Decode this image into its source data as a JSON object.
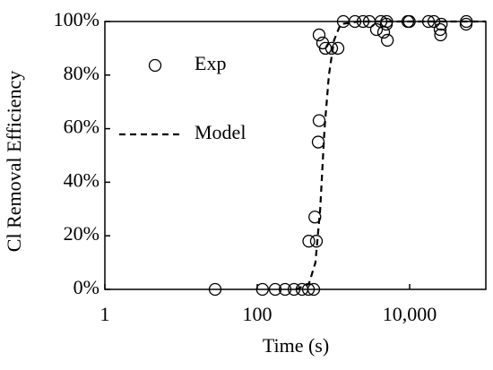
{
  "chart_data": {
    "type": "scatter",
    "x_label": "Time (s)",
    "y_label": "Cl Removal Efficiency",
    "xscale": "log",
    "xlim": [
      1,
      100000
    ],
    "xticks": [
      1,
      100,
      {
        "value": 10000,
        "label": "10,000"
      }
    ],
    "ylim": [
      0,
      100
    ],
    "yticks": [
      {
        "value": 0,
        "label": "0%"
      },
      {
        "value": 20,
        "label": "20%"
      },
      {
        "value": 40,
        "label": "40%"
      },
      {
        "value": 60,
        "label": "60%"
      },
      {
        "value": 80,
        "label": "80%"
      },
      {
        "value": 100,
        "label": "100%"
      }
    ],
    "legend": "upper left",
    "series": [
      {
        "name": "Exp",
        "kind": "markers",
        "color": "#000000",
        "x": [
          28,
          117,
          172,
          232,
          304,
          387,
          469,
          551,
          475,
          597,
          570,
          631,
          648,
          648,
          722,
          784,
          947,
          1146,
          1347,
          1916,
          2444,
          2957,
          3670,
          4204,
          4560,
          4944,
          5000,
          5100,
          9470,
          9900,
          17660,
          20790,
          25120,
          25500,
          26000,
          55100,
          55500
        ],
        "values": [
          0,
          0,
          0,
          0,
          0,
          0,
          0,
          0,
          18,
          18,
          27,
          55,
          63,
          95,
          92,
          90,
          90,
          90,
          100,
          100,
          100,
          100,
          97,
          100,
          96,
          99,
          100,
          93,
          100,
          100,
          100,
          100,
          97,
          95,
          99,
          99,
          100
        ]
      },
      {
        "name": "Model",
        "kind": "dashed-line",
        "color": "#000000",
        "x": [
          321,
          475,
          580,
          670,
          764,
          872,
          1018,
          1240,
          2140,
          100000
        ],
        "values": [
          0,
          2,
          10,
          30,
          60,
          80,
          93,
          99,
          100,
          100
        ]
      }
    ]
  }
}
